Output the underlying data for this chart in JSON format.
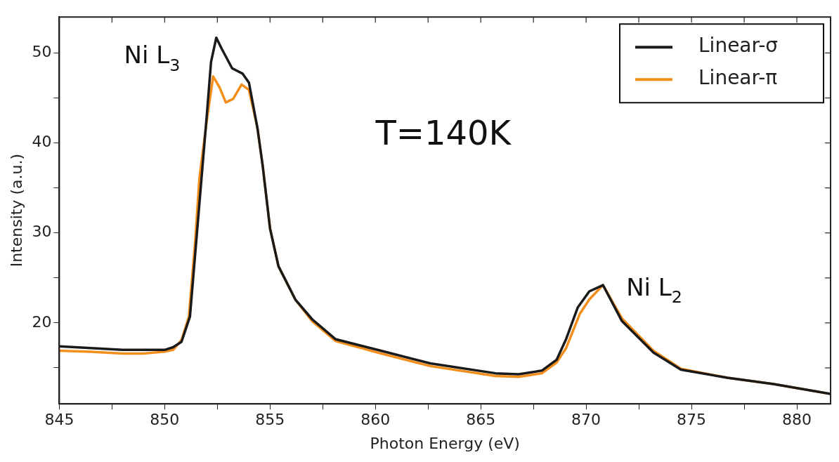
{
  "chart_data": {
    "type": "line",
    "xlabel": "Photon Energy (eV)",
    "ylabel": "Intensity (a.u.)",
    "xlim": [
      845,
      881.6
    ],
    "ylim": [
      11,
      54
    ],
    "xticks": [
      845,
      {
        "value": 847.5,
        "label": null
      },
      850,
      {
        "value": 852.5,
        "label": null
      },
      855,
      {
        "value": 857.5,
        "label": null
      },
      860,
      {
        "value": 862.5,
        "label": null
      },
      865,
      {
        "value": 867.5,
        "label": null
      },
      870,
      {
        "value": 872.5,
        "label": null
      },
      875,
      {
        "value": 877.5,
        "label": null
      },
      880
    ],
    "yticks": [
      {
        "value": 15,
        "label": null
      },
      20,
      {
        "value": 25,
        "label": null
      },
      30,
      {
        "value": 35,
        "label": null
      },
      40,
      {
        "value": 45,
        "label": null
      },
      50
    ],
    "grid": false,
    "legend": "top right",
    "marker": "none",
    "line_style": "solid",
    "annotations": [
      "Ni L$_{3}$",
      "Ni L$_{2}$",
      "T=140K"
    ],
    "series": [
      {
        "name": "Linear-σ",
        "color": "#1a1a1a",
        "x": [
          845,
          846.5,
          848,
          849,
          850,
          850.4,
          850.8,
          851.2,
          851.6,
          852,
          852.2,
          852.45,
          852.7,
          853.2,
          853.7,
          854,
          854.4,
          854.65,
          855,
          855.4,
          856.2,
          857,
          858.1,
          860.1,
          862.6,
          865.7,
          866.8,
          867.9,
          868.6,
          869.05,
          869.6,
          870.15,
          870.8,
          871.7,
          873.2,
          874.5,
          876.7,
          878.9,
          881.6
        ],
        "values": [
          17.4,
          17.2,
          17.0,
          17.0,
          17.0,
          17.3,
          17.9,
          20.7,
          31.9,
          43.1,
          49,
          51.7,
          50.5,
          48.3,
          47.7,
          46.7,
          41.7,
          37.5,
          30.5,
          26.3,
          22.6,
          20.4,
          18.2,
          17.0,
          15.5,
          14.4,
          14.3,
          14.7,
          15.9,
          18.2,
          21.7,
          23.5,
          24.2,
          20.2,
          16.7,
          14.8,
          13.9,
          13.2,
          12.1
        ]
      },
      {
        "name": "Linear-π",
        "color": "#f28e1c",
        "x": [
          845,
          846.5,
          848,
          849,
          850,
          850.4,
          850.8,
          851.15,
          851.45,
          851.65,
          852,
          852.3,
          852.6,
          852.9,
          853.25,
          853.65,
          854,
          854.4,
          854.65,
          855,
          855.4,
          856.2,
          857,
          858.1,
          860.1,
          862.6,
          865.7,
          866.8,
          867.9,
          868.6,
          869.05,
          869.7,
          870.15,
          870.8,
          871.7,
          873.2,
          874.5,
          876.7,
          878.9,
          881.6
        ],
        "values": [
          16.9,
          16.8,
          16.6,
          16.6,
          16.8,
          17.0,
          18.1,
          20.7,
          29.1,
          36.1,
          42.5,
          47.4,
          46.2,
          44.5,
          44.9,
          46.5,
          45.9,
          41.7,
          37.5,
          30.5,
          26.3,
          22.6,
          20.2,
          18.0,
          16.7,
          15.2,
          14.1,
          14.0,
          14.4,
          15.6,
          17.2,
          21.0,
          22.6,
          24.2,
          20.5,
          16.9,
          14.9,
          13.9,
          13.2,
          12.1
        ]
      }
    ]
  }
}
